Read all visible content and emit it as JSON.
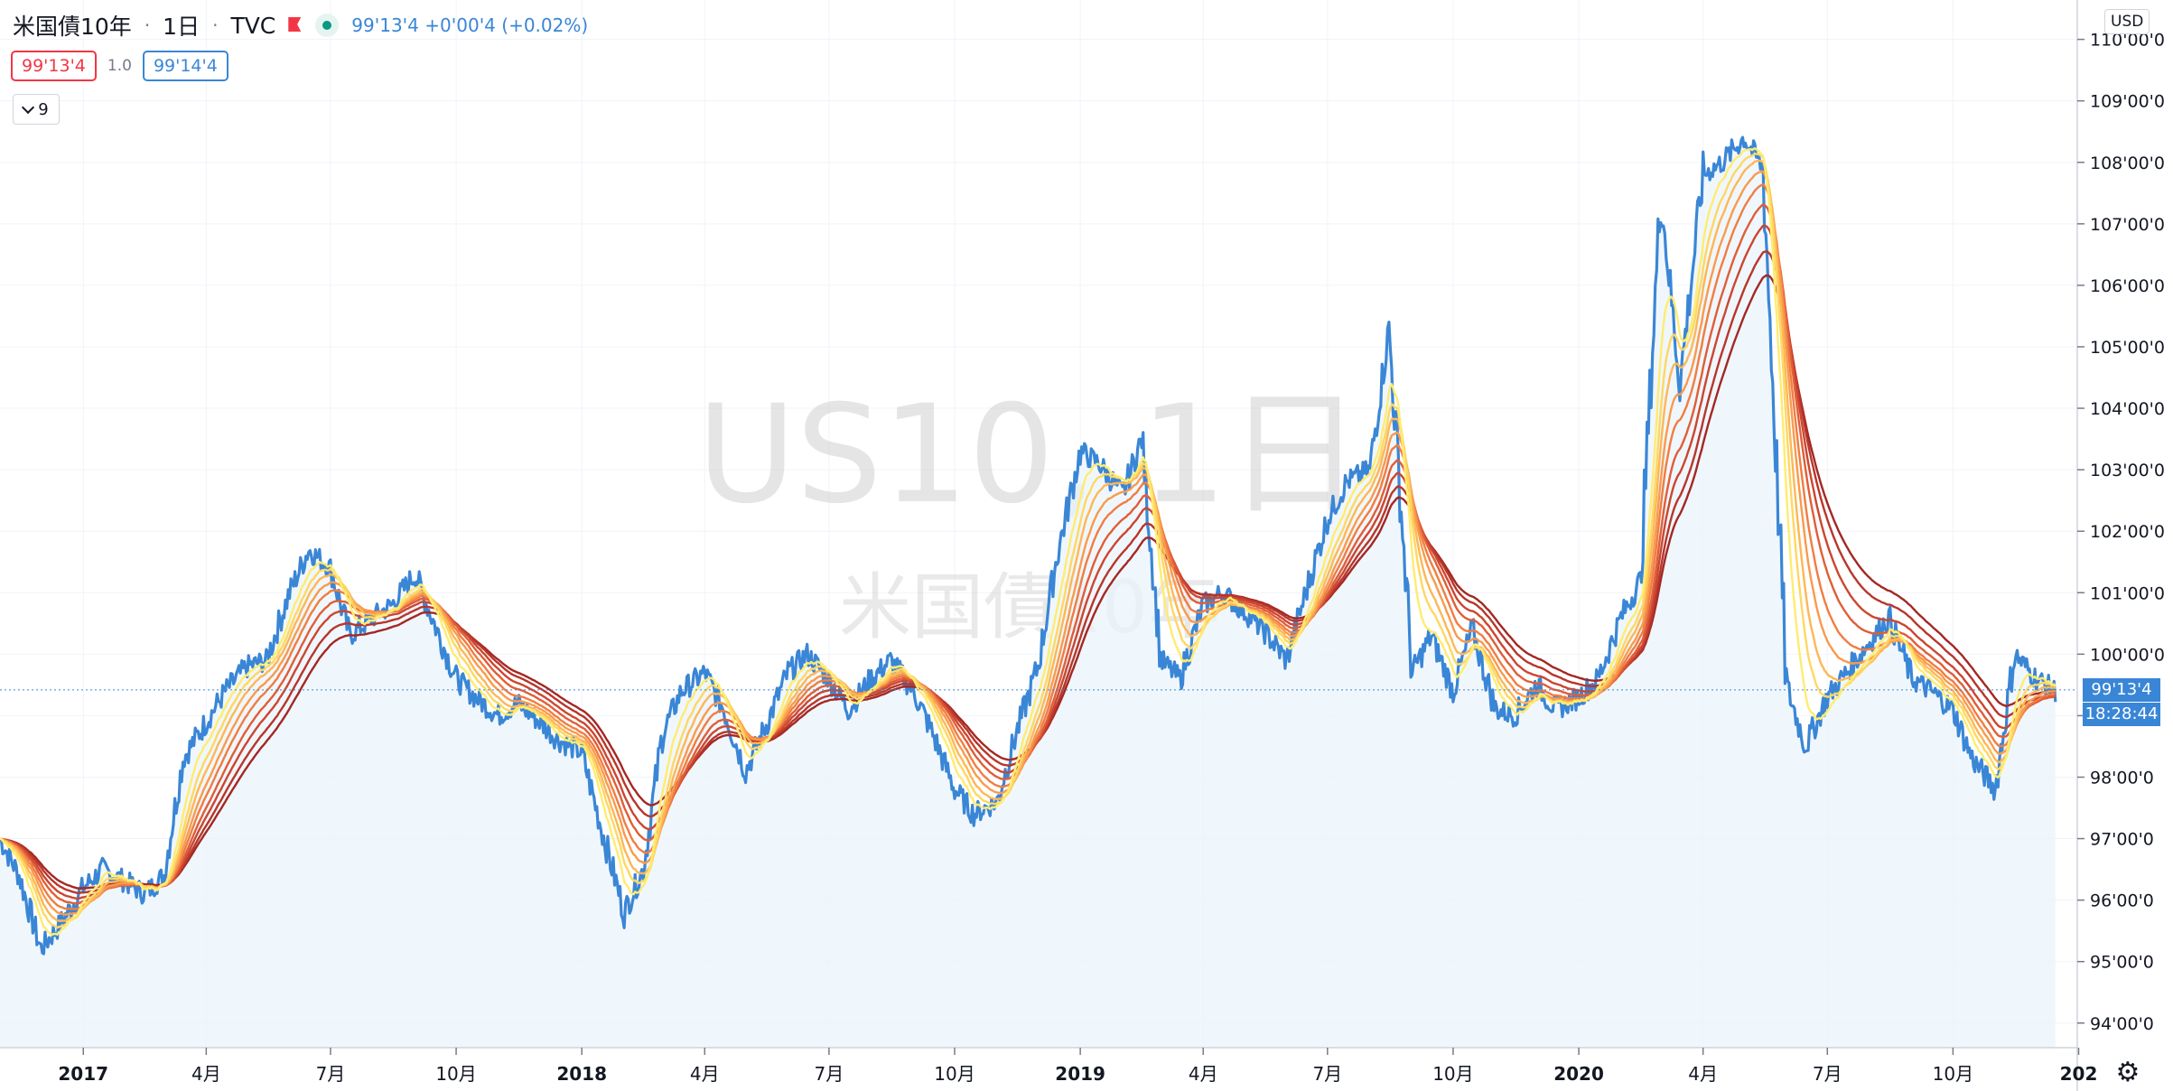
{
  "header": {
    "symbol_name": "米国債10年",
    "interval": "1日",
    "exchange": "TVC",
    "last_change": "99'13'4 +0'00'4 (+0.02%)",
    "sell_price": "99'13'4",
    "spread": "1.0",
    "buy_price": "99'14'4",
    "indicator_count": "9",
    "currency": "USD"
  },
  "watermark": {
    "line1": "US10, 1日",
    "line2": "米国債10年"
  },
  "price_scale": {
    "last_price_tag": "99'13'4",
    "countdown_tag": "18:28:44"
  },
  "colors": {
    "price_line": "#3a86d6",
    "area_fill": "#eaf3fb",
    "ribbon": [
      "#ffec70",
      "#ffd762",
      "#fdb756",
      "#f99a4c",
      "#f07d42",
      "#e05e37",
      "#cc4630",
      "#b8362a",
      "#a32824"
    ]
  },
  "chart_data": {
    "type": "line",
    "title": "米国債10年 · 1日 · TVC",
    "x_unit": "month",
    "y_unit": "price (points)",
    "ylim": [
      93.6,
      110.2
    ],
    "y_ticks": [
      94,
      95,
      96,
      97,
      98,
      99,
      100,
      101,
      102,
      103,
      104,
      105,
      106,
      107,
      108,
      109,
      110
    ],
    "y_tick_labels": [
      "94'00'0",
      "95'00'0",
      "96'00'0",
      "97'00'0",
      "98'00'0",
      "99'00'0",
      "100'00'0",
      "101'00'0",
      "102'00'0",
      "103'00'0",
      "104'00'0",
      "105'00'0",
      "106'00'0",
      "107'00'0",
      "108'00'0",
      "109'00'0",
      "110'00'0"
    ],
    "x_range": [
      "2016-11",
      "2020-12"
    ],
    "x_ticks": [
      {
        "label": "2017",
        "date": "2017-01",
        "bold": true
      },
      {
        "label": "4月",
        "date": "2017-04",
        "bold": false
      },
      {
        "label": "7月",
        "date": "2017-07",
        "bold": false
      },
      {
        "label": "10月",
        "date": "2017-10",
        "bold": false
      },
      {
        "label": "2018",
        "date": "2018-01",
        "bold": true
      },
      {
        "label": "4月",
        "date": "2018-04",
        "bold": false
      },
      {
        "label": "7月",
        "date": "2018-07",
        "bold": false
      },
      {
        "label": "10月",
        "date": "2018-10",
        "bold": false
      },
      {
        "label": "2019",
        "date": "2019-01",
        "bold": true
      },
      {
        "label": "4月",
        "date": "2019-04",
        "bold": false
      },
      {
        "label": "7月",
        "date": "2019-07",
        "bold": false
      },
      {
        "label": "10月",
        "date": "2019-10",
        "bold": false
      },
      {
        "label": "2020",
        "date": "2020-01",
        "bold": true
      },
      {
        "label": "4月",
        "date": "2020-04",
        "bold": false
      },
      {
        "label": "7月",
        "date": "2020-07",
        "bold": false
      },
      {
        "label": "10月",
        "date": "2020-10",
        "bold": false
      },
      {
        "label": "202",
        "date": "2021-01",
        "bold": true
      }
    ],
    "series": [
      {
        "name": "US10",
        "points": [
          [
            "2016-11-01",
            97.0
          ],
          [
            "2016-11-15",
            96.4
          ],
          [
            "2016-12-01",
            95.2
          ],
          [
            "2016-12-15",
            95.6
          ],
          [
            "2017-01-01",
            96.2
          ],
          [
            "2017-01-15",
            96.5
          ],
          [
            "2017-02-01",
            96.3
          ],
          [
            "2017-02-15",
            96.1
          ],
          [
            "2017-03-01",
            96.4
          ],
          [
            "2017-03-15",
            98.3
          ],
          [
            "2017-04-01",
            98.9
          ],
          [
            "2017-04-15",
            99.4
          ],
          [
            "2017-05-01",
            99.8
          ],
          [
            "2017-05-15",
            99.9
          ],
          [
            "2017-06-01",
            101.0
          ],
          [
            "2017-06-15",
            101.7
          ],
          [
            "2017-07-01",
            101.4
          ],
          [
            "2017-07-15",
            100.3
          ],
          [
            "2017-08-01",
            100.6
          ],
          [
            "2017-08-15",
            100.8
          ],
          [
            "2017-09-01",
            101.3
          ],
          [
            "2017-09-15",
            100.5
          ],
          [
            "2017-10-01",
            99.6
          ],
          [
            "2017-10-15",
            99.3
          ],
          [
            "2017-11-01",
            99.0
          ],
          [
            "2017-11-15",
            99.2
          ],
          [
            "2017-12-01",
            98.9
          ],
          [
            "2017-12-15",
            98.6
          ],
          [
            "2018-01-01",
            98.4
          ],
          [
            "2018-01-15",
            97.2
          ],
          [
            "2018-02-01",
            95.8
          ],
          [
            "2018-02-15",
            96.5
          ],
          [
            "2018-03-01",
            98.7
          ],
          [
            "2018-03-15",
            99.4
          ],
          [
            "2018-04-01",
            99.7
          ],
          [
            "2018-04-15",
            99.1
          ],
          [
            "2018-05-01",
            98.1
          ],
          [
            "2018-05-15",
            98.8
          ],
          [
            "2018-06-01",
            99.7
          ],
          [
            "2018-06-15",
            100.0
          ],
          [
            "2018-07-01",
            99.6
          ],
          [
            "2018-07-15",
            99.1
          ],
          [
            "2018-08-01",
            99.6
          ],
          [
            "2018-08-15",
            99.9
          ],
          [
            "2018-09-01",
            99.4
          ],
          [
            "2018-09-15",
            98.7
          ],
          [
            "2018-10-01",
            97.8
          ],
          [
            "2018-10-15",
            97.4
          ],
          [
            "2018-11-01",
            97.6
          ],
          [
            "2018-11-15",
            98.7
          ],
          [
            "2018-12-01",
            99.8
          ],
          [
            "2018-12-15",
            101.6
          ],
          [
            "2019-01-01",
            103.3
          ],
          [
            "2019-01-15",
            103.1
          ],
          [
            "2019-02-01",
            102.6
          ],
          [
            "2019-02-15",
            103.5
          ],
          [
            "2019-03-01",
            99.9
          ],
          [
            "2019-03-15",
            99.6
          ],
          [
            "2019-04-01",
            100.8
          ],
          [
            "2019-04-15",
            101.0
          ],
          [
            "2019-05-01",
            100.7
          ],
          [
            "2019-05-15",
            100.4
          ],
          [
            "2019-06-01",
            99.9
          ],
          [
            "2019-06-15",
            101.0
          ],
          [
            "2019-07-01",
            102.2
          ],
          [
            "2019-07-15",
            102.8
          ],
          [
            "2019-08-01",
            103.0
          ],
          [
            "2019-08-15",
            105.3
          ],
          [
            "2019-09-01",
            99.7
          ],
          [
            "2019-09-15",
            100.3
          ],
          [
            "2019-10-01",
            99.4
          ],
          [
            "2019-10-15",
            100.4
          ],
          [
            "2019-11-01",
            99.1
          ],
          [
            "2019-11-15",
            99.0
          ],
          [
            "2019-12-01",
            99.5
          ],
          [
            "2019-12-15",
            99.1
          ],
          [
            "2020-01-01",
            99.3
          ],
          [
            "2020-01-15",
            99.6
          ],
          [
            "2020-02-01",
            100.6
          ],
          [
            "2020-02-15",
            101.2
          ],
          [
            "2020-03-01",
            107.5
          ],
          [
            "2020-03-15",
            104.4
          ],
          [
            "2020-04-01",
            107.8
          ],
          [
            "2020-04-15",
            108.0
          ],
          [
            "2020-05-01",
            108.4
          ],
          [
            "2020-05-15",
            107.9
          ],
          [
            "2020-06-01",
            99.5
          ],
          [
            "2020-06-15",
            98.5
          ],
          [
            "2020-07-01",
            99.3
          ],
          [
            "2020-07-15",
            99.7
          ],
          [
            "2020-08-01",
            100.2
          ],
          [
            "2020-08-15",
            100.6
          ],
          [
            "2020-09-01",
            99.6
          ],
          [
            "2020-09-15",
            99.4
          ],
          [
            "2020-10-01",
            99.1
          ],
          [
            "2020-10-15",
            98.3
          ],
          [
            "2020-11-01",
            97.8
          ],
          [
            "2020-11-15",
            100.0
          ],
          [
            "2020-12-01",
            99.6
          ],
          [
            "2020-12-15",
            99.4
          ]
        ]
      }
    ],
    "ribbon_spans": [
      0.5,
      0.75,
      1.0,
      1.3,
      1.6,
      2.0,
      2.4,
      2.9,
      3.4
    ],
    "last_value": 99.42,
    "grid": true,
    "legend": "top-left"
  }
}
